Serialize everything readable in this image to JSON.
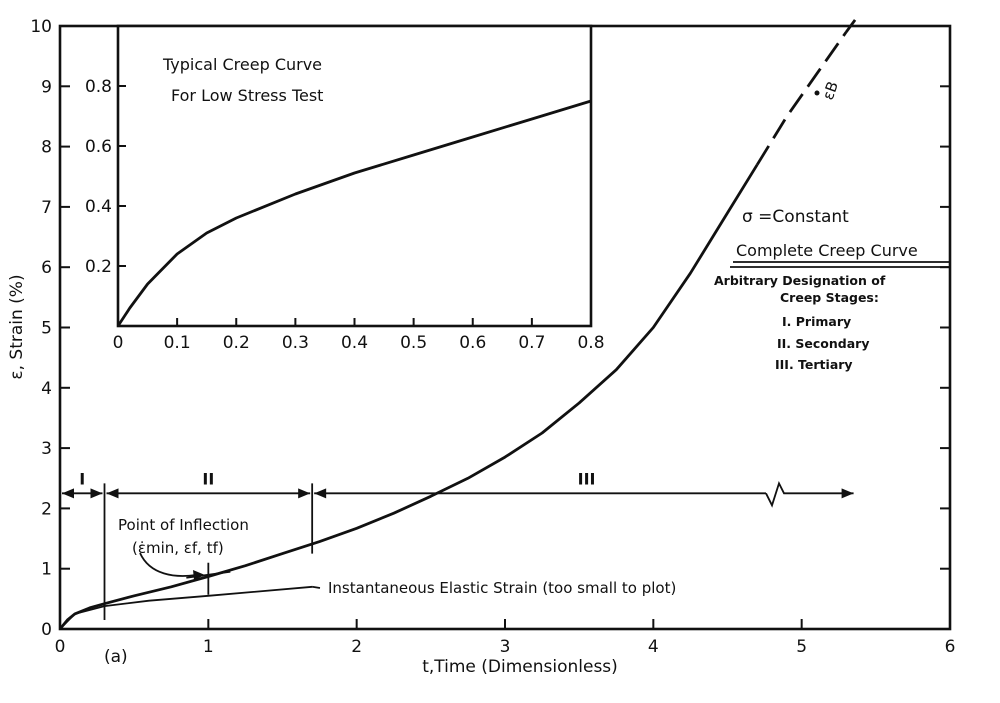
{
  "chart_data": [
    {
      "id": "main",
      "type": "line",
      "title": "",
      "xlabel": "t,Time (Dimensionless)",
      "ylabel": "ε, Strain (%)",
      "xlim": [
        0,
        6
      ],
      "ylim": [
        0,
        10
      ],
      "xticks": [
        "0",
        "1",
        "2",
        "3",
        "4",
        "5",
        "6"
      ],
      "yticks": [
        "0",
        "1",
        "2",
        "3",
        "4",
        "5",
        "6",
        "7",
        "8",
        "9",
        "10"
      ],
      "grid": false,
      "series": [
        {
          "x": [
            0,
            0.05,
            0.1,
            0.2,
            0.3,
            0.5,
            0.75,
            1.0,
            1.25,
            1.5,
            1.75,
            2.0,
            2.25,
            2.5,
            2.75,
            3.0,
            3.25,
            3.5,
            3.75,
            4.0,
            4.25,
            4.5,
            4.7
          ],
          "y": [
            0,
            0.15,
            0.25,
            0.35,
            0.42,
            0.55,
            0.7,
            0.87,
            1.05,
            1.25,
            1.45,
            1.67,
            1.92,
            2.2,
            2.5,
            2.85,
            3.25,
            3.75,
            4.3,
            5.0,
            5.9,
            6.9,
            7.7
          ]
        },
        {
          "style": "dashed",
          "x": [
            4.7,
            4.9,
            5.1,
            5.3
          ],
          "y": [
            7.7,
            8.5,
            9.2,
            9.9
          ]
        }
      ],
      "elastic_line": {
        "x": [
          0,
          0.1,
          0.3,
          0.6,
          1.0,
          1.7
        ],
        "y": [
          0,
          0.25,
          0.38,
          0.47,
          0.55,
          0.7
        ]
      },
      "stage_boundaries_x": [
        0.3,
        1.7
      ],
      "stages_y": 2.25,
      "stage_labels": [
        "I",
        "II",
        "III"
      ],
      "inflection_point": {
        "x": 1.0,
        "y": 0.9
      },
      "annotations": {
        "inflection_title": "Point of Inflection",
        "inflection_coords": "(ε̇min, εf, tf)",
        "elastic": "Instantaneous Elastic Strain (too small to plot)",
        "epsilon_b": "εB",
        "panel_label": "(a)",
        "sigma": "σ =Constant",
        "complete": "Complete Creep Curve",
        "designation_1": "Arbitrary Designation of",
        "designation_2": "Creep Stages:",
        "stage_1": "I. Primary",
        "stage_2": "II. Secondary",
        "stage_3": "III. Tertiary"
      }
    },
    {
      "id": "inset",
      "type": "line",
      "title": "Typical Creep Curve",
      "subtitle": "For Low Stress Test",
      "xlim": [
        0,
        0.8
      ],
      "ylim": [
        0,
        1.0
      ],
      "xticks": [
        "0",
        "0.1",
        "0.2",
        "0.3",
        "0.4",
        "0.5",
        "0.6",
        "0.7",
        "0.8"
      ],
      "yticks": [
        "0.2",
        "0.4",
        "0.6",
        "0.8"
      ],
      "series": [
        {
          "x": [
            0,
            0.02,
            0.05,
            0.1,
            0.15,
            0.2,
            0.3,
            0.4,
            0.5,
            0.6,
            0.7,
            0.8
          ],
          "y": [
            0.0,
            0.06,
            0.14,
            0.24,
            0.31,
            0.36,
            0.44,
            0.51,
            0.57,
            0.63,
            0.69,
            0.75
          ]
        }
      ]
    }
  ]
}
